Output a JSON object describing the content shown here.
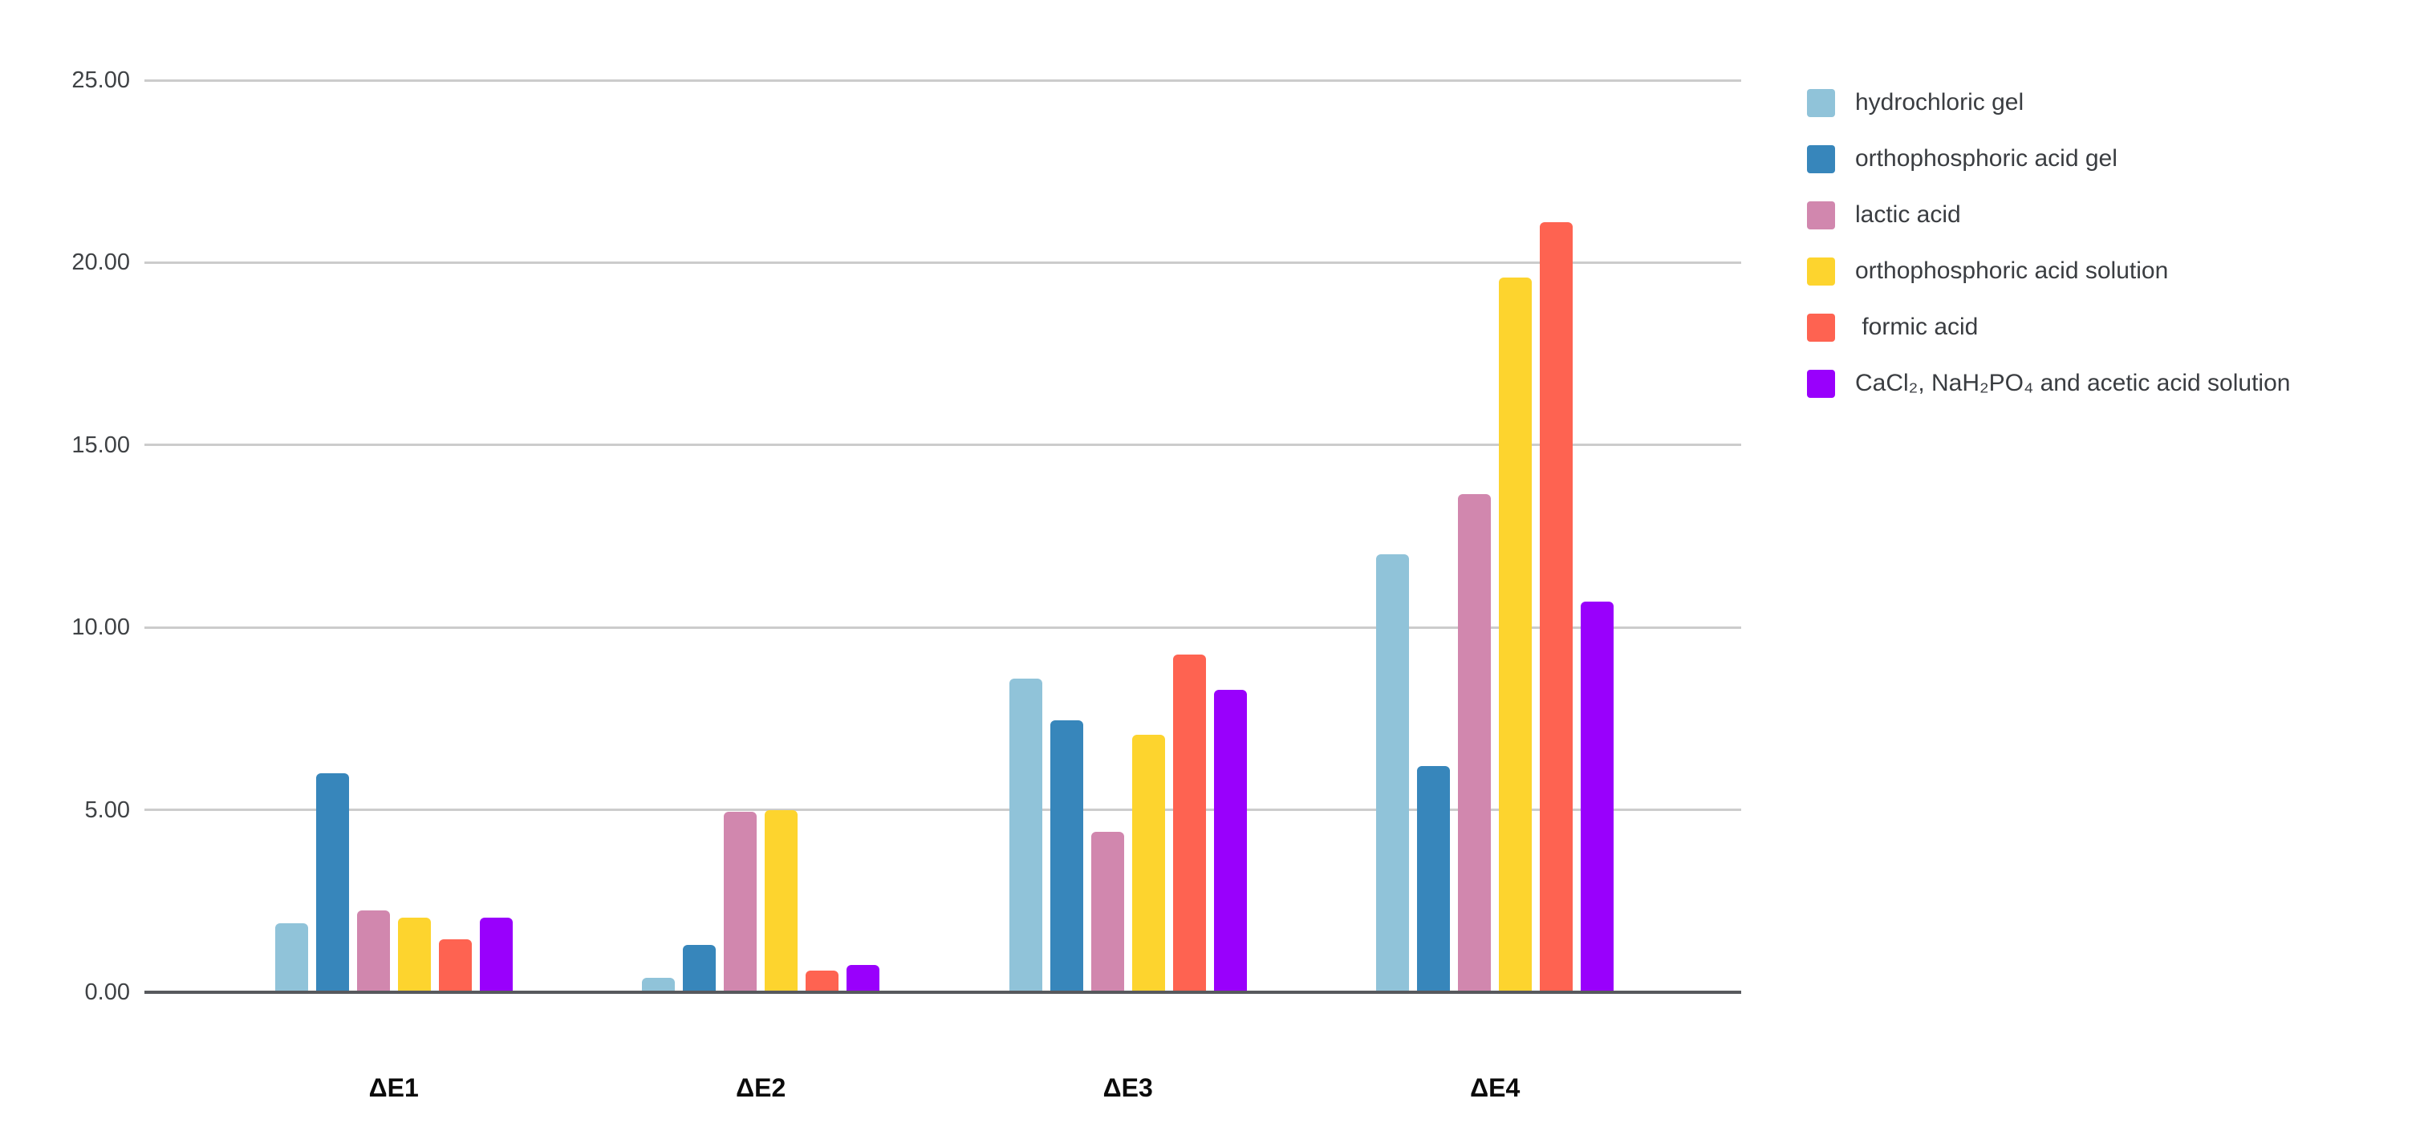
{
  "chart_data": {
    "type": "bar",
    "title": "",
    "xlabel": "",
    "ylabel": "",
    "categories": [
      "ΔE1",
      "ΔE2",
      "ΔE3",
      "ΔE4"
    ],
    "series": [
      {
        "name": "hydrochloric gel",
        "color": "#90C3D9",
        "values": [
          1.9,
          0.4,
          8.6,
          12.0
        ]
      },
      {
        "name": "orthophosphoric acid gel",
        "color": "#3786BB",
        "values": [
          6.0,
          1.3,
          7.45,
          6.2
        ]
      },
      {
        "name": "lactic acid",
        "color": "#D187AE",
        "values": [
          2.25,
          4.95,
          4.4,
          13.65
        ]
      },
      {
        "name": "orthophosphoric acid solution",
        "color": "#FDD42E",
        "values": [
          2.05,
          5.0,
          7.05,
          19.6
        ]
      },
      {
        "name": " formic acid",
        "color": "#FE6351",
        "values": [
          1.45,
          0.6,
          9.25,
          21.1
        ]
      },
      {
        "name": "CaCl₂, NaH₂PO₄ and acetic acid solution",
        "color": "#9900FC",
        "values": [
          2.05,
          0.75,
          8.3,
          10.7
        ]
      }
    ],
    "ylim": [
      0,
      25
    ],
    "ytick_step": 5,
    "ytick_labels": [
      "0.00",
      "5.00",
      "10.00",
      "15.00",
      "20.00",
      "25.00"
    ],
    "grid": true,
    "legend_position": "right"
  },
  "style": {
    "background": "#FFFFFF",
    "gridline_color": "#CCCCCC",
    "axis_line_color": "#57595D",
    "tick_label_color": "#3F4245",
    "category_label_color": "#0B0B0B",
    "legend_text_color": "#3A3D41"
  }
}
